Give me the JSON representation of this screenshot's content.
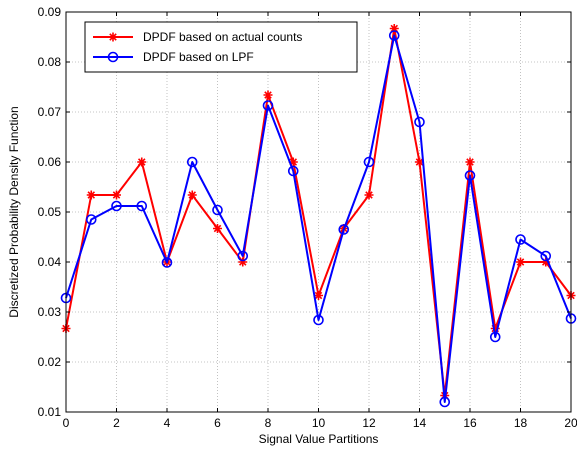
{
  "chart_data": {
    "type": "line",
    "xlabel": "Signal Value Partitions",
    "ylabel": "Discretized Probability Density Function",
    "xlim": [
      0,
      20
    ],
    "ylim": [
      0.01,
      0.09
    ],
    "x_ticks": [
      "0",
      "2",
      "4",
      "6",
      "8",
      "10",
      "12",
      "14",
      "16",
      "18",
      "20"
    ],
    "y_ticks": [
      "0.01",
      "0.02",
      "0.03",
      "0.04",
      "0.05",
      "0.06",
      "0.07",
      "0.08",
      "0.09"
    ],
    "grid": true,
    "legend_position": "top-left",
    "x": [
      0,
      1,
      2,
      3,
      4,
      5,
      6,
      7,
      8,
      9,
      10,
      11,
      12,
      13,
      14,
      15,
      16,
      17,
      18,
      19,
      20
    ],
    "series": [
      {
        "name": "DPDF based on actual counts",
        "color": "#ff0000",
        "marker": "star",
        "values": [
          0.0267,
          0.0534,
          0.0534,
          0.06,
          0.04,
          0.0534,
          0.0467,
          0.04,
          0.0734,
          0.06,
          0.0333,
          0.0467,
          0.0534,
          0.0867,
          0.06,
          0.0133,
          0.06,
          0.0267,
          0.04,
          0.04,
          0.0333
        ]
      },
      {
        "name": "DPDF based on LPF",
        "color": "#0000ff",
        "marker": "circle",
        "values": [
          0.0328,
          0.0485,
          0.0512,
          0.0512,
          0.0399,
          0.06,
          0.0504,
          0.0412,
          0.0713,
          0.0582,
          0.0284,
          0.0465,
          0.06,
          0.0853,
          0.068,
          0.012,
          0.0573,
          0.025,
          0.0445,
          0.0412,
          0.0287
        ]
      }
    ]
  }
}
